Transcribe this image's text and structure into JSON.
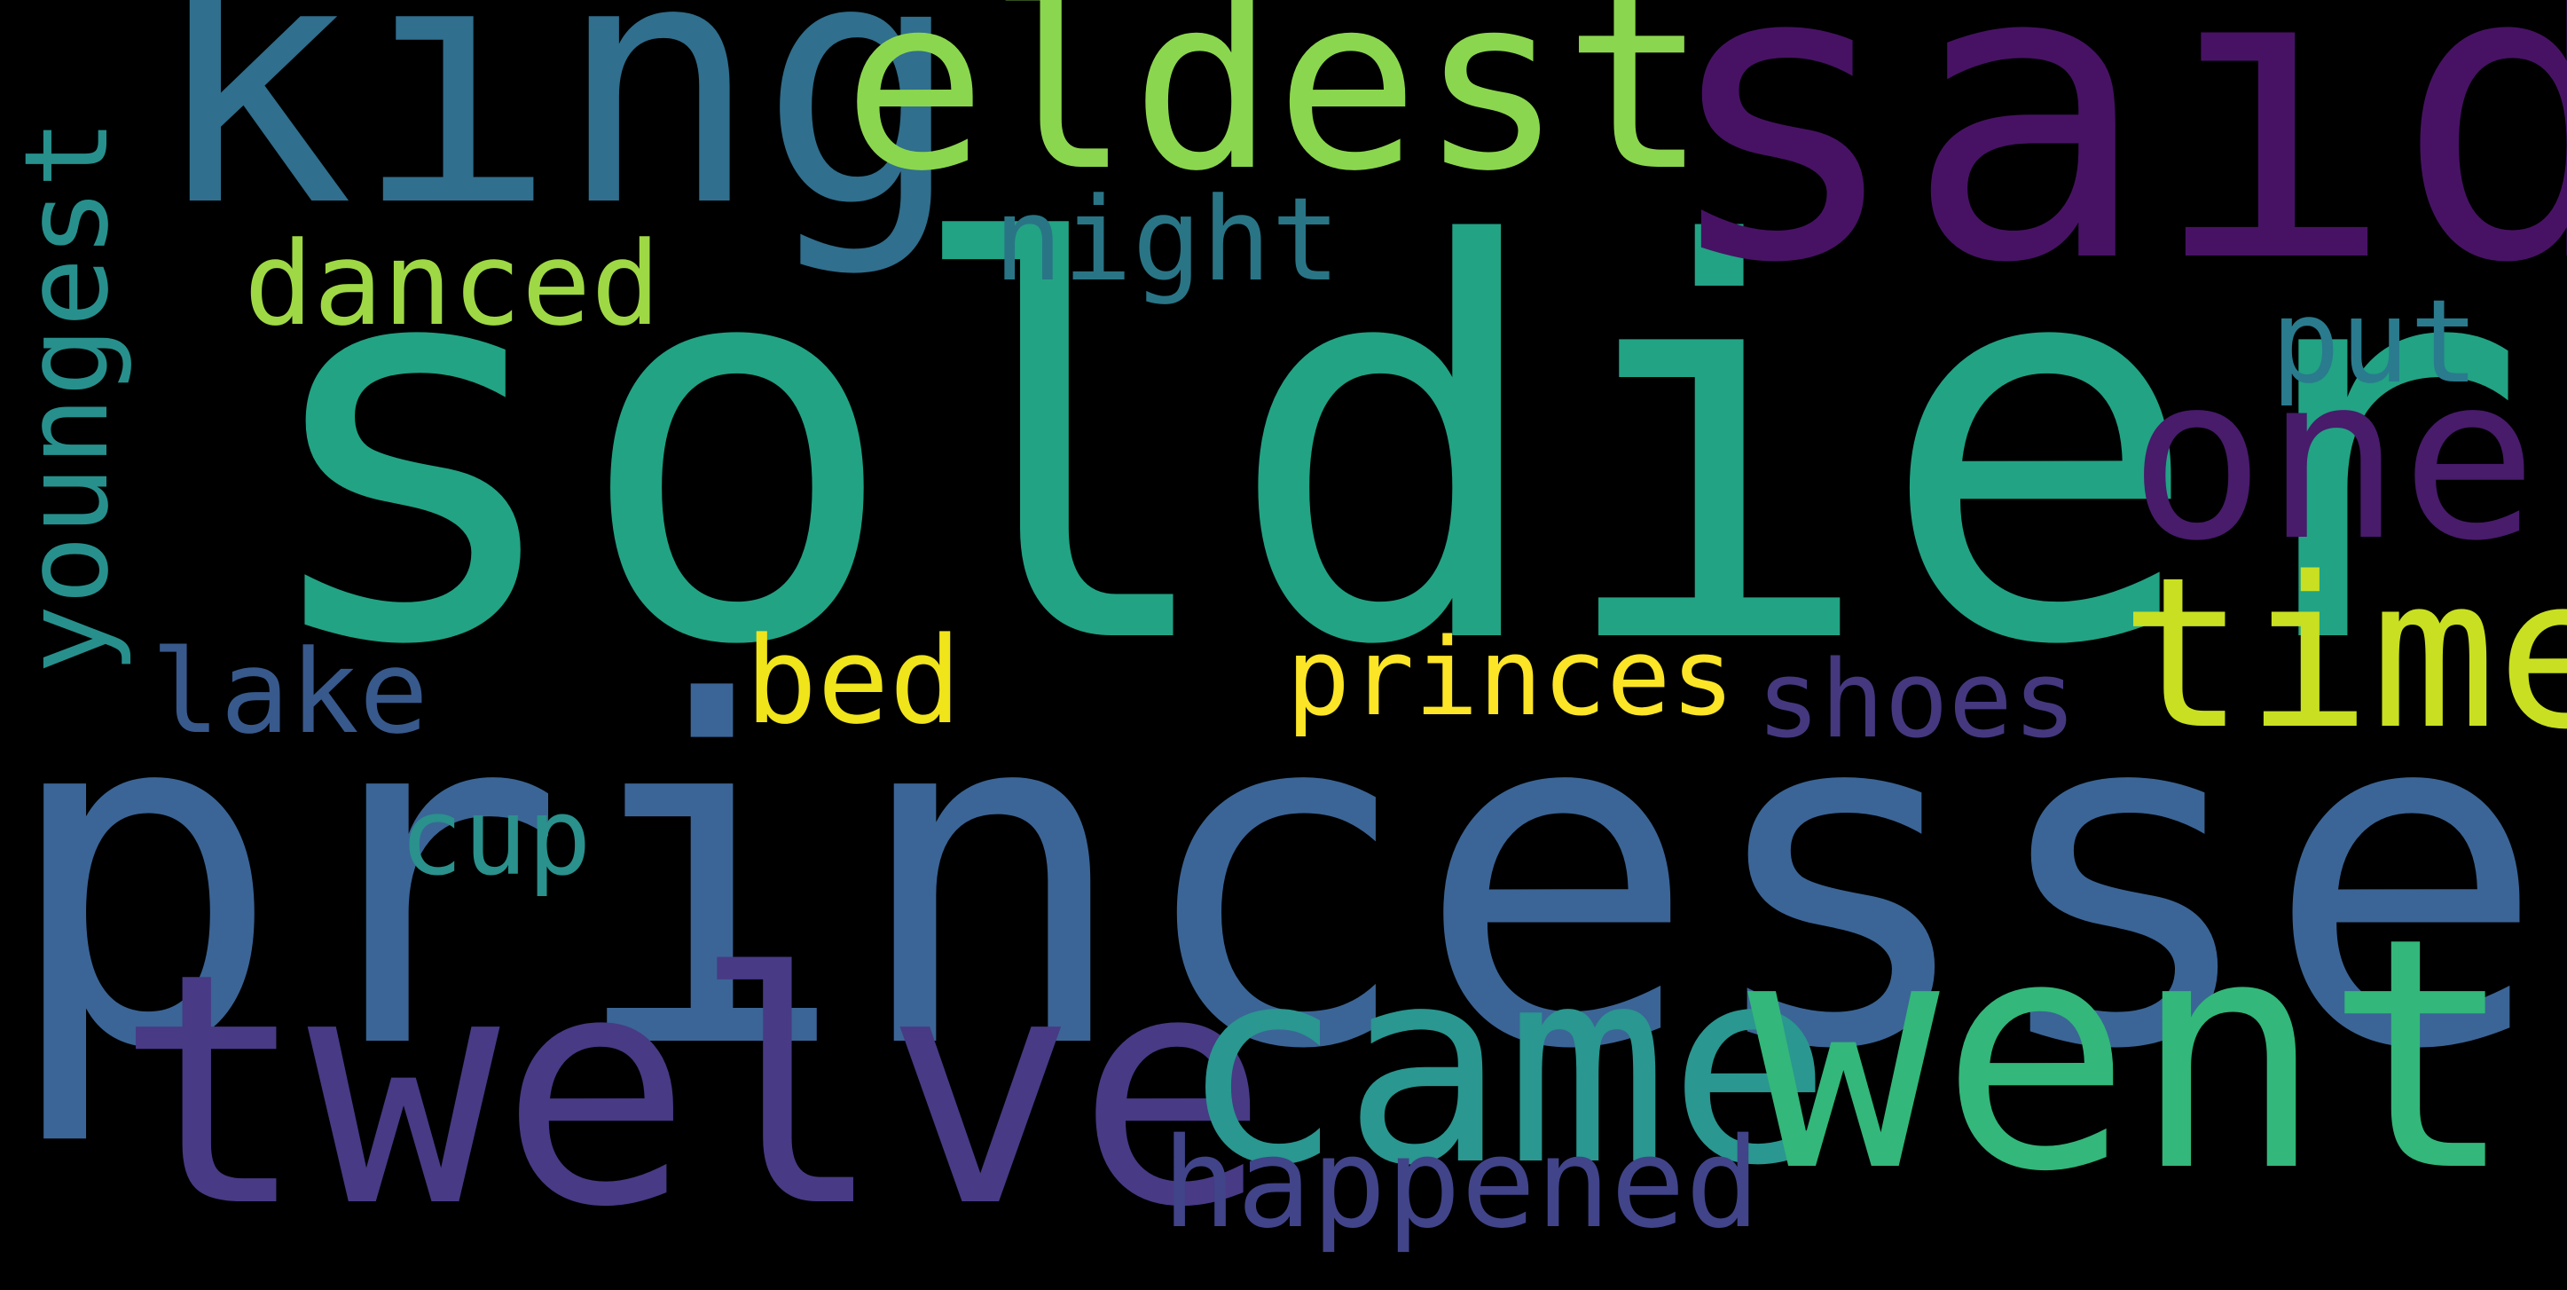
{
  "background_color": "#000000",
  "words": [
    {
      "id": "princesses",
      "text": "princesses",
      "color": "#3b6596"
    },
    {
      "id": "soldier",
      "text": "soldier",
      "color": "#22a384"
    },
    {
      "id": "king",
      "text": "king",
      "color": "#306f8d"
    },
    {
      "id": "eldest",
      "text": "eldest",
      "color": "#8bd64f"
    },
    {
      "id": "said",
      "text": "said",
      "color": "#471264"
    },
    {
      "id": "one",
      "text": "one",
      "color": "#481b6b"
    },
    {
      "id": "time",
      "text": "time",
      "color": "#c8e021"
    },
    {
      "id": "put",
      "text": "put",
      "color": "#2a7b8d"
    },
    {
      "id": "night",
      "text": "night",
      "color": "#297586"
    },
    {
      "id": "danced",
      "text": "danced",
      "color": "#9fd845"
    },
    {
      "id": "youngest",
      "text": "youngest",
      "color": "#27908d"
    },
    {
      "id": "lake",
      "text": "lake",
      "color": "#38598c"
    },
    {
      "id": "bed",
      "text": "bed",
      "color": "#f0e41b"
    },
    {
      "id": "princes",
      "text": "princes",
      "color": "#fbe526"
    },
    {
      "id": "shoes",
      "text": "shoes",
      "color": "#45387f"
    },
    {
      "id": "cup",
      "text": "cup",
      "color": "#2a918c"
    },
    {
      "id": "twelve",
      "text": "twelve",
      "color": "#483a85"
    },
    {
      "id": "came",
      "text": "came",
      "color": "#2a9790"
    },
    {
      "id": "went",
      "text": "went",
      "color": "#33b77a"
    },
    {
      "id": "happened",
      "text": "happened",
      "color": "#414489"
    }
  ]
}
